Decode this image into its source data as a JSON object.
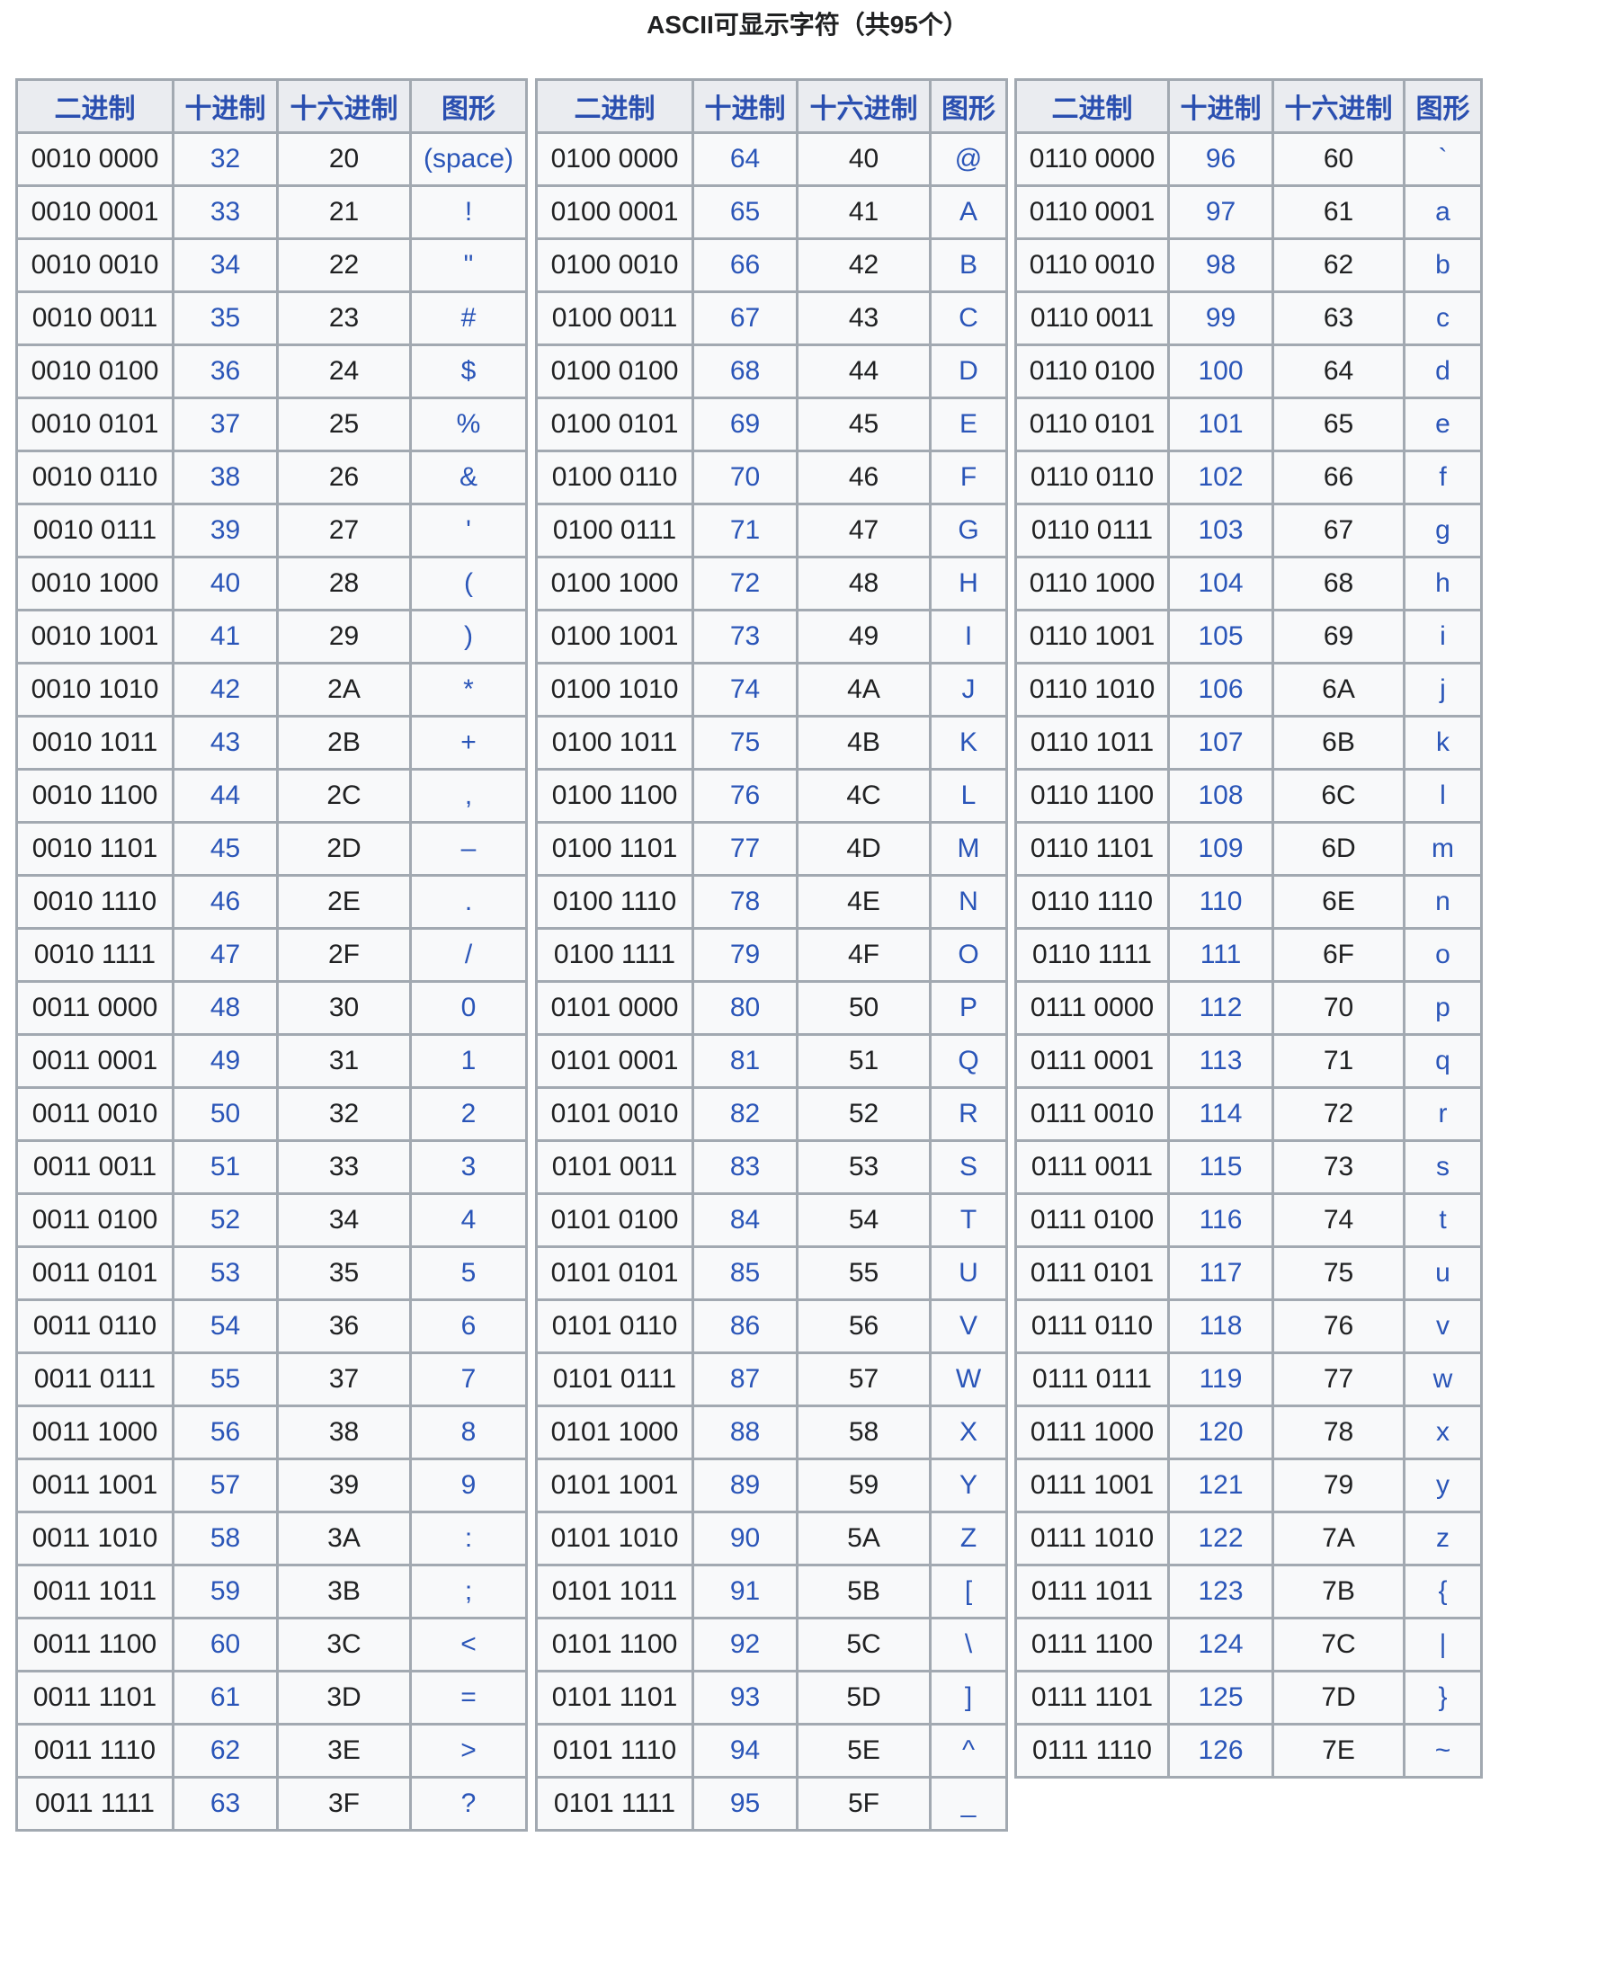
{
  "title": "ASCII可显示字符（共95个）",
  "headers": [
    "二进制",
    "十进制",
    "十六进制",
    "图形"
  ],
  "colors": {
    "link": "#2a55b8",
    "header_text": "#2a4fb0",
    "header_bg": "#eaecf0",
    "cell_bg": "#f8f9fa",
    "border": "#a2a9b1"
  },
  "tables": [
    {
      "rows": [
        [
          "0010 0000",
          "32",
          "20",
          "(space)"
        ],
        [
          "0010 0001",
          "33",
          "21",
          "!"
        ],
        [
          "0010 0010",
          "34",
          "22",
          "\""
        ],
        [
          "0010 0011",
          "35",
          "23",
          "#"
        ],
        [
          "0010 0100",
          "36",
          "24",
          "$"
        ],
        [
          "0010 0101",
          "37",
          "25",
          "%"
        ],
        [
          "0010 0110",
          "38",
          "26",
          "&"
        ],
        [
          "0010 0111",
          "39",
          "27",
          "'"
        ],
        [
          "0010 1000",
          "40",
          "28",
          "("
        ],
        [
          "0010 1001",
          "41",
          "29",
          ")"
        ],
        [
          "0010 1010",
          "42",
          "2A",
          "*"
        ],
        [
          "0010 1011",
          "43",
          "2B",
          "+"
        ],
        [
          "0010 1100",
          "44",
          "2C",
          ","
        ],
        [
          "0010 1101",
          "45",
          "2D",
          "–"
        ],
        [
          "0010 1110",
          "46",
          "2E",
          "."
        ],
        [
          "0010 1111",
          "47",
          "2F",
          "/"
        ],
        [
          "0011 0000",
          "48",
          "30",
          "0"
        ],
        [
          "0011 0001",
          "49",
          "31",
          "1"
        ],
        [
          "0011 0010",
          "50",
          "32",
          "2"
        ],
        [
          "0011 0011",
          "51",
          "33",
          "3"
        ],
        [
          "0011 0100",
          "52",
          "34",
          "4"
        ],
        [
          "0011 0101",
          "53",
          "35",
          "5"
        ],
        [
          "0011 0110",
          "54",
          "36",
          "6"
        ],
        [
          "0011 0111",
          "55",
          "37",
          "7"
        ],
        [
          "0011 1000",
          "56",
          "38",
          "8"
        ],
        [
          "0011 1001",
          "57",
          "39",
          "9"
        ],
        [
          "0011 1010",
          "58",
          "3A",
          ":"
        ],
        [
          "0011 1011",
          "59",
          "3B",
          ";"
        ],
        [
          "0011 1100",
          "60",
          "3C",
          "<"
        ],
        [
          "0011 1101",
          "61",
          "3D",
          "="
        ],
        [
          "0011 1110",
          "62",
          "3E",
          ">"
        ],
        [
          "0011 1111",
          "63",
          "3F",
          "?"
        ]
      ]
    },
    {
      "rows": [
        [
          "0100 0000",
          "64",
          "40",
          "@"
        ],
        [
          "0100 0001",
          "65",
          "41",
          "A"
        ],
        [
          "0100 0010",
          "66",
          "42",
          "B"
        ],
        [
          "0100 0011",
          "67",
          "43",
          "C"
        ],
        [
          "0100 0100",
          "68",
          "44",
          "D"
        ],
        [
          "0100 0101",
          "69",
          "45",
          "E"
        ],
        [
          "0100 0110",
          "70",
          "46",
          "F"
        ],
        [
          "0100 0111",
          "71",
          "47",
          "G"
        ],
        [
          "0100 1000",
          "72",
          "48",
          "H"
        ],
        [
          "0100 1001",
          "73",
          "49",
          "I"
        ],
        [
          "0100 1010",
          "74",
          "4A",
          "J"
        ],
        [
          "0100 1011",
          "75",
          "4B",
          "K"
        ],
        [
          "0100 1100",
          "76",
          "4C",
          "L"
        ],
        [
          "0100 1101",
          "77",
          "4D",
          "M"
        ],
        [
          "0100 1110",
          "78",
          "4E",
          "N"
        ],
        [
          "0100 1111",
          "79",
          "4F",
          "O"
        ],
        [
          "0101 0000",
          "80",
          "50",
          "P"
        ],
        [
          "0101 0001",
          "81",
          "51",
          "Q"
        ],
        [
          "0101 0010",
          "82",
          "52",
          "R"
        ],
        [
          "0101 0011",
          "83",
          "53",
          "S"
        ],
        [
          "0101 0100",
          "84",
          "54",
          "T"
        ],
        [
          "0101 0101",
          "85",
          "55",
          "U"
        ],
        [
          "0101 0110",
          "86",
          "56",
          "V"
        ],
        [
          "0101 0111",
          "87",
          "57",
          "W"
        ],
        [
          "0101 1000",
          "88",
          "58",
          "X"
        ],
        [
          "0101 1001",
          "89",
          "59",
          "Y"
        ],
        [
          "0101 1010",
          "90",
          "5A",
          "Z"
        ],
        [
          "0101 1011",
          "91",
          "5B",
          "["
        ],
        [
          "0101 1100",
          "92",
          "5C",
          "\\"
        ],
        [
          "0101 1101",
          "93",
          "5D",
          "]"
        ],
        [
          "0101 1110",
          "94",
          "5E",
          "^"
        ],
        [
          "0101 1111",
          "95",
          "5F",
          "_"
        ]
      ]
    },
    {
      "rows": [
        [
          "0110 0000",
          "96",
          "60",
          "`"
        ],
        [
          "0110 0001",
          "97",
          "61",
          "a"
        ],
        [
          "0110 0010",
          "98",
          "62",
          "b"
        ],
        [
          "0110 0011",
          "99",
          "63",
          "c"
        ],
        [
          "0110 0100",
          "100",
          "64",
          "d"
        ],
        [
          "0110 0101",
          "101",
          "65",
          "e"
        ],
        [
          "0110 0110",
          "102",
          "66",
          "f"
        ],
        [
          "0110 0111",
          "103",
          "67",
          "g"
        ],
        [
          "0110 1000",
          "104",
          "68",
          "h"
        ],
        [
          "0110 1001",
          "105",
          "69",
          "i"
        ],
        [
          "0110 1010",
          "106",
          "6A",
          "j"
        ],
        [
          "0110 1011",
          "107",
          "6B",
          "k"
        ],
        [
          "0110 1100",
          "108",
          "6C",
          "l"
        ],
        [
          "0110 1101",
          "109",
          "6D",
          "m"
        ],
        [
          "0110 1110",
          "110",
          "6E",
          "n"
        ],
        [
          "0110 1111",
          "111",
          "6F",
          "o"
        ],
        [
          "0111 0000",
          "112",
          "70",
          "p"
        ],
        [
          "0111 0001",
          "113",
          "71",
          "q"
        ],
        [
          "0111 0010",
          "114",
          "72",
          "r"
        ],
        [
          "0111 0011",
          "115",
          "73",
          "s"
        ],
        [
          "0111 0100",
          "116",
          "74",
          "t"
        ],
        [
          "0111 0101",
          "117",
          "75",
          "u"
        ],
        [
          "0111 0110",
          "118",
          "76",
          "v"
        ],
        [
          "0111 0111",
          "119",
          "77",
          "w"
        ],
        [
          "0111 1000",
          "120",
          "78",
          "x"
        ],
        [
          "0111 1001",
          "121",
          "79",
          "y"
        ],
        [
          "0111 1010",
          "122",
          "7A",
          "z"
        ],
        [
          "0111 1011",
          "123",
          "7B",
          "{"
        ],
        [
          "0111 1100",
          "124",
          "7C",
          "|"
        ],
        [
          "0111 1101",
          "125",
          "7D",
          "}"
        ],
        [
          "0111 1110",
          "126",
          "7E",
          "~"
        ]
      ]
    }
  ]
}
